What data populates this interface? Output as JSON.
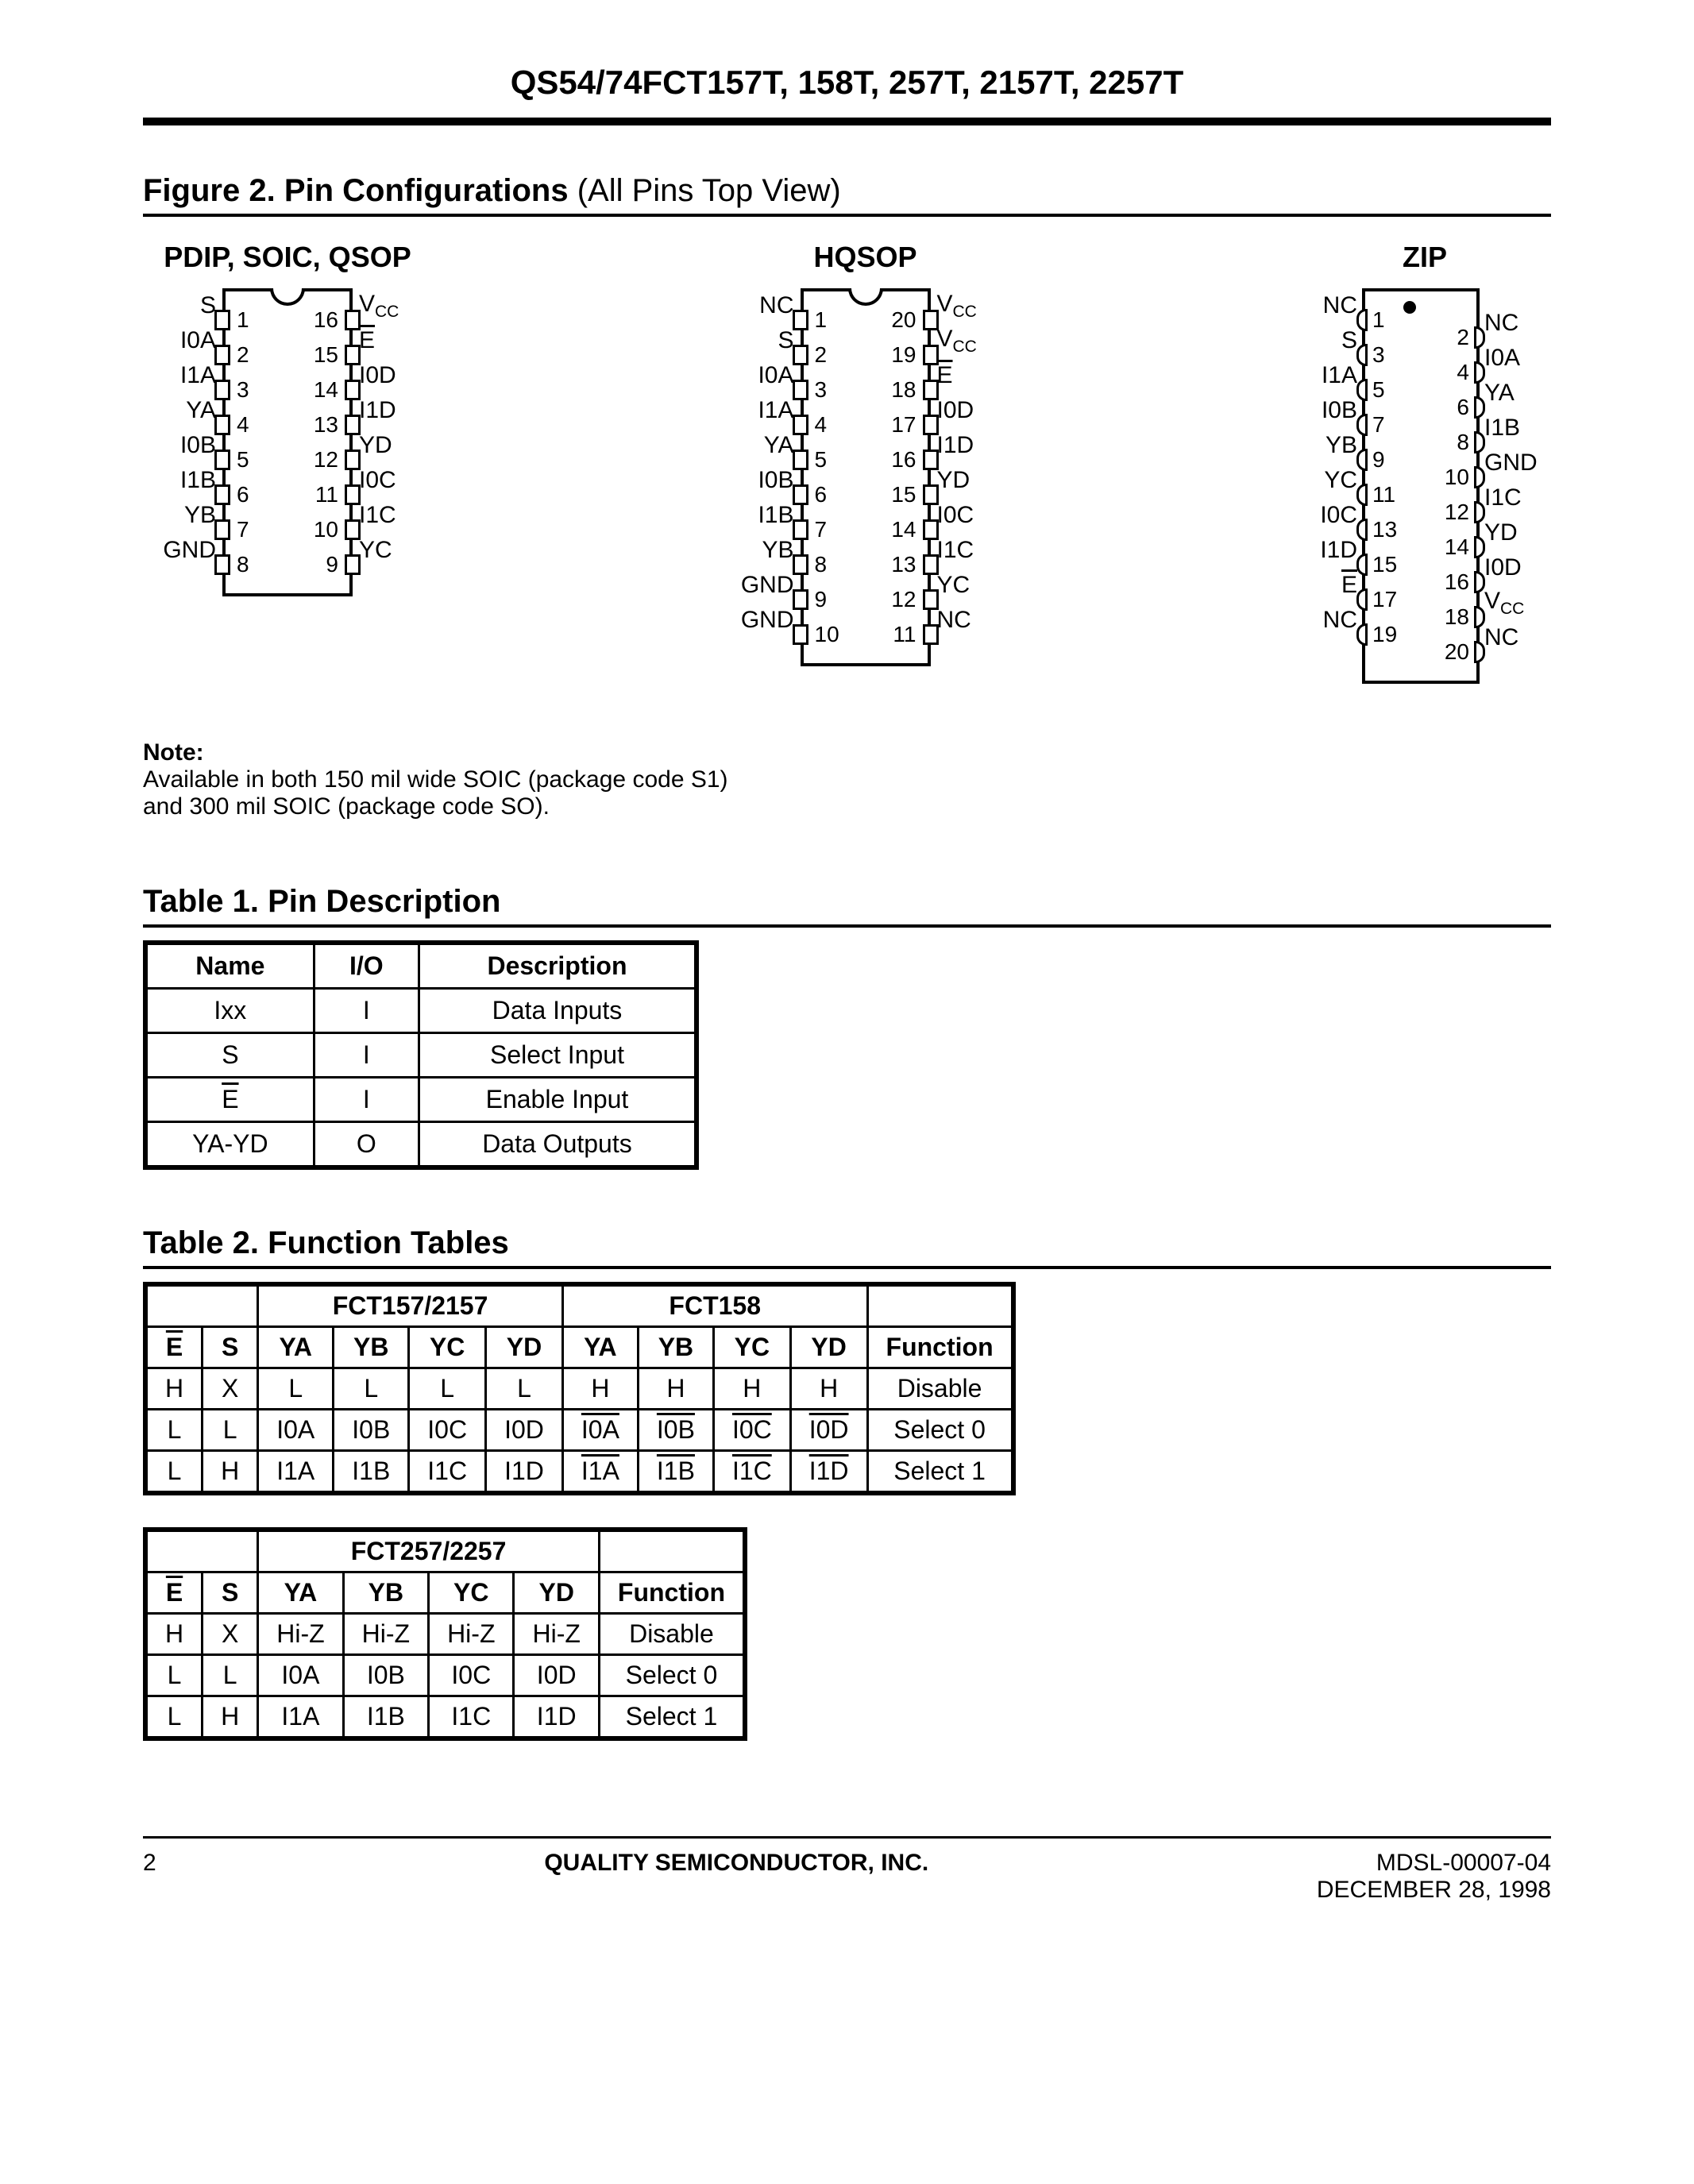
{
  "header": {
    "title": "QS54/74FCT157T, 158T, 257T, 2157T, 2257T"
  },
  "figure2": {
    "title_bold": "Figure 2. Pin Configurations",
    "title_rest": " (All Pins Top View)",
    "packages": {
      "pdip": {
        "label": "PDIP, SOIC, QSOP",
        "left": [
          "S",
          "I0A",
          "I1A",
          "YA",
          "I0B",
          "I1B",
          "YB",
          "GND"
        ],
        "left_nums": [
          1,
          2,
          3,
          4,
          5,
          6,
          7,
          8
        ],
        "right": [
          "V_CC",
          "E_bar",
          "I0D",
          "I1D",
          "YD",
          "I0C",
          "I1C",
          "YC"
        ],
        "right_nums": [
          16,
          15,
          14,
          13,
          12,
          11,
          10,
          9
        ]
      },
      "hqsop": {
        "label": "HQSOP",
        "left": [
          "NC",
          "S",
          "I0A",
          "I1A",
          "YA",
          "I0B",
          "I1B",
          "YB",
          "GND",
          "GND"
        ],
        "left_nums": [
          1,
          2,
          3,
          4,
          5,
          6,
          7,
          8,
          9,
          10
        ],
        "right": [
          "V_CC",
          "V_CC",
          "E_bar",
          "I0D",
          "I1D",
          "YD",
          "I0C",
          "I1C",
          "YC",
          "NC"
        ],
        "right_nums": [
          20,
          19,
          18,
          17,
          16,
          15,
          14,
          13,
          12,
          11
        ]
      },
      "zip": {
        "label": "ZIP",
        "left": [
          "NC",
          "S",
          "I1A",
          "I0B",
          "YB",
          "YC",
          "I0C",
          "I1D",
          "E_bar",
          "NC"
        ],
        "left_nums": [
          1,
          3,
          5,
          7,
          9,
          11,
          13,
          15,
          17,
          19
        ],
        "right": [
          "NC",
          "I0A",
          "YA",
          "I1B",
          "GND",
          "I1C",
          "YD",
          "I0D",
          "V_CC",
          "NC"
        ],
        "right_nums": [
          2,
          4,
          6,
          8,
          10,
          12,
          14,
          16,
          18,
          20
        ]
      }
    }
  },
  "note": {
    "heading": "Note:",
    "line1": "Available in both 150 mil wide SOIC (package code S1)",
    "line2": "and 300 mil SOIC (package code SO)."
  },
  "table1": {
    "title": "Table 1. Pin Description",
    "columns": [
      "Name",
      "I/O",
      "Description"
    ],
    "rows": [
      [
        "Ixx",
        "I",
        "Data Inputs"
      ],
      [
        "S",
        "I",
        "Select Input"
      ],
      [
        "E_bar",
        "I",
        "Enable Input"
      ],
      [
        "YA-YD",
        "O",
        "Data Outputs"
      ]
    ]
  },
  "table2": {
    "title": "Table 2. Function Tables",
    "ft1": {
      "group_headers": [
        "",
        "FCT157/2157",
        "FCT158",
        ""
      ],
      "columns": [
        "E_bar",
        "S",
        "YA",
        "YB",
        "YC",
        "YD",
        "YA",
        "YB",
        "YC",
        "YD",
        "Function"
      ],
      "rows": [
        [
          "H",
          "X",
          "L",
          "L",
          "L",
          "L",
          "H",
          "H",
          "H",
          "H",
          "Disable"
        ],
        [
          "L",
          "L",
          "I0A",
          "I0B",
          "I0C",
          "I0D",
          "I0A_bar",
          "I0B_bar",
          "I0C_bar",
          "I0D_bar",
          "Select 0"
        ],
        [
          "L",
          "H",
          "I1A",
          "I1B",
          "I1C",
          "I1D",
          "I1A_bar",
          "I1B_bar",
          "I1C_bar",
          "I1D_bar",
          "Select 1"
        ]
      ]
    },
    "ft2": {
      "group_headers": [
        "",
        "FCT257/2257",
        ""
      ],
      "columns": [
        "E_bar",
        "S",
        "YA",
        "YB",
        "YC",
        "YD",
        "Function"
      ],
      "rows": [
        [
          "H",
          "X",
          "Hi-Z",
          "Hi-Z",
          "Hi-Z",
          "Hi-Z",
          "Disable"
        ],
        [
          "L",
          "L",
          "I0A",
          "I0B",
          "I0C",
          "I0D",
          "Select 0"
        ],
        [
          "L",
          "H",
          "I1A",
          "I1B",
          "I1C",
          "I1D",
          "Select 1"
        ]
      ]
    }
  },
  "footer": {
    "page": "2",
    "center": "QUALITY SEMICONDUCTOR, INC.",
    "right1": "MDSL-00007-04",
    "right2": "DECEMBER 28, 1998"
  }
}
